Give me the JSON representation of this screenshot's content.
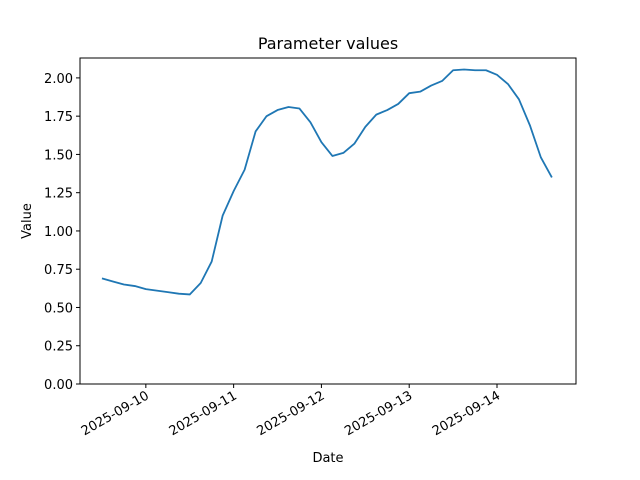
{
  "chart_data": {
    "type": "line",
    "title": "Parameter values",
    "x_label": "Date",
    "y_label": "Value",
    "x": [
      "2025-09-09T12:00",
      "2025-09-09T15:00",
      "2025-09-09T18:00",
      "2025-09-09T21:00",
      "2025-09-10T00:00",
      "2025-09-10T03:00",
      "2025-09-10T06:00",
      "2025-09-10T09:00",
      "2025-09-10T12:00",
      "2025-09-10T15:00",
      "2025-09-10T18:00",
      "2025-09-10T21:00",
      "2025-09-11T00:00",
      "2025-09-11T03:00",
      "2025-09-11T06:00",
      "2025-09-11T09:00",
      "2025-09-11T12:00",
      "2025-09-11T15:00",
      "2025-09-11T18:00",
      "2025-09-11T21:00",
      "2025-09-12T00:00",
      "2025-09-12T03:00",
      "2025-09-12T06:00",
      "2025-09-12T09:00",
      "2025-09-12T12:00",
      "2025-09-12T15:00",
      "2025-09-12T18:00",
      "2025-09-12T21:00",
      "2025-09-13T00:00",
      "2025-09-13T03:00",
      "2025-09-13T06:00",
      "2025-09-13T09:00",
      "2025-09-13T12:00",
      "2025-09-13T15:00",
      "2025-09-13T18:00",
      "2025-09-13T21:00",
      "2025-09-14T00:00",
      "2025-09-14T03:00",
      "2025-09-14T06:00",
      "2025-09-14T09:00",
      "2025-09-14T12:00",
      "2025-09-14T15:00"
    ],
    "series": [
      {
        "name": "Value",
        "color": "#1f77b4",
        "values": [
          0.69,
          0.67,
          0.65,
          0.64,
          0.62,
          0.61,
          0.6,
          0.59,
          0.585,
          0.66,
          0.8,
          1.1,
          1.26,
          1.4,
          1.65,
          1.75,
          1.79,
          1.81,
          1.8,
          1.71,
          1.58,
          1.49,
          1.51,
          1.57,
          1.68,
          1.76,
          1.79,
          1.83,
          1.9,
          1.91,
          1.95,
          1.98,
          2.05,
          2.055,
          2.05,
          2.05,
          2.02,
          1.96,
          1.86,
          1.69,
          1.48,
          1.35
        ]
      }
    ],
    "xlim": [
      "2025-09-09T06:00",
      "2025-09-14T21:36"
    ],
    "xticks": [
      "2025-09-10",
      "2025-09-11",
      "2025-09-12",
      "2025-09-13",
      "2025-09-14"
    ],
    "ylim": [
      0,
      2.13
    ],
    "yticks": [
      {
        "value": 0,
        "label": "0.00"
      },
      0.25,
      {
        "value": 0.5,
        "label": "0.50"
      },
      0.75,
      {
        "value": 1,
        "label": "1.00"
      },
      1.25,
      {
        "value": 1.5,
        "label": "1.50"
      },
      1.75,
      {
        "value": 2,
        "label": "2.00"
      }
    ],
    "grid": false
  }
}
